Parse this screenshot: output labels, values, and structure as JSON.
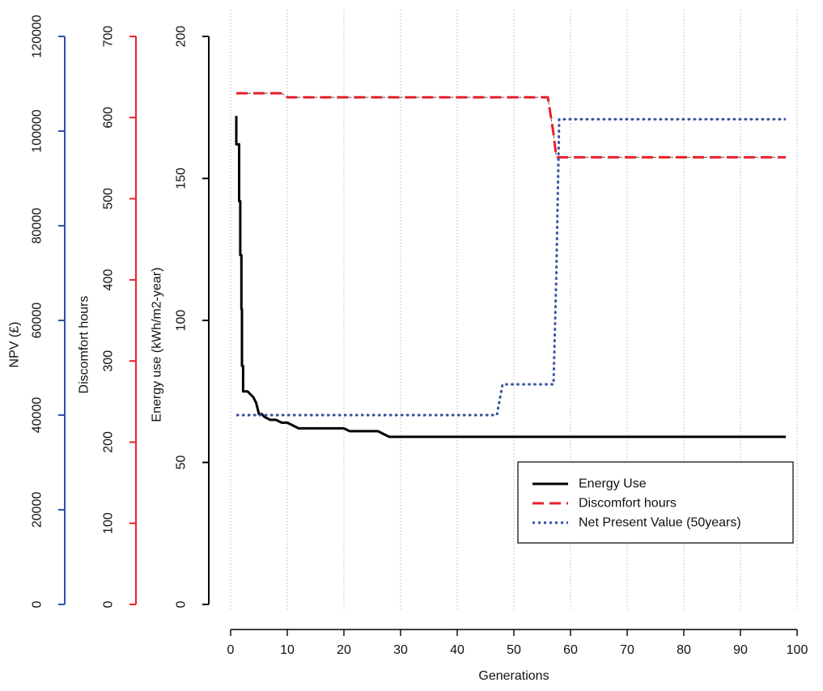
{
  "chart_data": {
    "type": "line",
    "title": "",
    "xlabel": "Generations",
    "xlim": [
      0,
      100
    ],
    "x_ticks": [
      0,
      10,
      20,
      30,
      40,
      50,
      60,
      70,
      80,
      90,
      100
    ],
    "grid": "vertical dotted gridlines at each x tick",
    "legend_position": "bottom-right",
    "y_axes": [
      {
        "name": "energy",
        "label": "Energy use (kWh/m2-year)",
        "ylim": [
          0,
          200
        ],
        "ticks": [
          0,
          50,
          100,
          150,
          200
        ],
        "color": "#000000"
      },
      {
        "name": "discomfort",
        "label": "Discomfort hours",
        "ylim": [
          0,
          700
        ],
        "ticks": [
          0,
          100,
          200,
          300,
          400,
          500,
          600,
          700
        ],
        "color": "#e8202a"
      },
      {
        "name": "npv",
        "label": "NPV (£)",
        "ylim": [
          0,
          120000
        ],
        "ticks": [
          0,
          20000,
          40000,
          60000,
          80000,
          100000,
          120000
        ],
        "color": "#3050a8"
      }
    ],
    "series": [
      {
        "name": "Energy Use",
        "axis": "energy",
        "color": "#000000",
        "style": "solid",
        "x": [
          1,
          1,
          1.5,
          1.5,
          1.7,
          1.7,
          1.9,
          1.9,
          2.0,
          2.0,
          2.2,
          2.2,
          3.0,
          3.5,
          4.0,
          4.5,
          5.0,
          5.5,
          6.0,
          7.0,
          8.0,
          9.0,
          10.0,
          11.0,
          12.0,
          19.0,
          20.0,
          21.0,
          26.0,
          27.0,
          28.0,
          98.0
        ],
        "values": [
          172,
          162,
          162,
          142,
          142,
          123,
          123,
          104,
          104,
          84,
          84,
          75,
          75,
          74,
          73,
          71,
          67,
          67,
          66,
          65,
          65,
          64,
          64,
          63,
          62,
          62,
          62,
          61,
          61,
          60,
          59,
          59
        ]
      },
      {
        "name": "Discomfort hours",
        "axis": "discomfort",
        "color": "#e8202a",
        "style": "dashed",
        "x": [
          1,
          9,
          10,
          56,
          57,
          57.5,
          98
        ],
        "values": [
          630,
          630,
          625,
          625,
          580,
          551,
          551
        ]
      },
      {
        "name": "Net Present Value (50years)",
        "axis": "npv",
        "color": "#3050a8",
        "style": "dotted",
        "x": [
          1,
          47,
          48,
          57,
          57.5,
          58,
          98
        ],
        "values": [
          40000,
          40000,
          46500,
          46500,
          70000,
          102500,
          102500
        ]
      }
    ]
  }
}
